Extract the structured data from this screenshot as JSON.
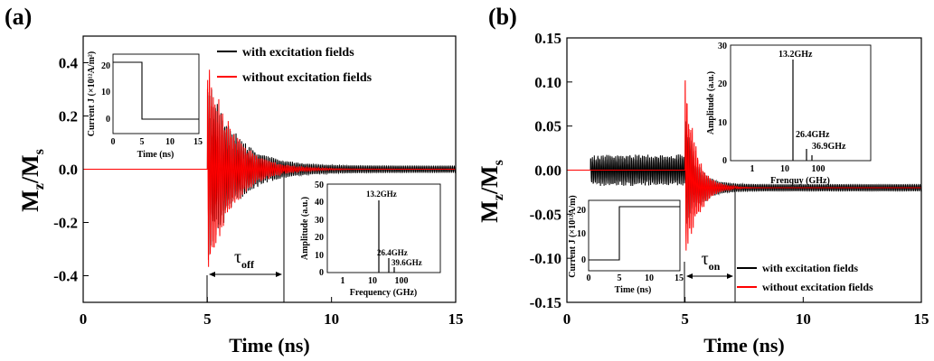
{
  "chart_data": [
    {
      "type": "line",
      "panel_label": "(a)",
      "xlabel": "Time (ns)",
      "ylabel": "M",
      "ylabel_sub": "z",
      "ylabel_tail": "/M",
      "ylabel_tail_sub": "s",
      "xlim": [
        0,
        15
      ],
      "ylim": [
        -0.5,
        0.5
      ],
      "xticks": [
        "0",
        "5",
        "10",
        "15"
      ],
      "yticks": [
        "0.4",
        "0.2",
        "0.0",
        "-0.2",
        "-0.4"
      ],
      "legend_position": "top-right",
      "series": [
        {
          "name": "with excitation fields",
          "color": "#000000",
          "onset": 5.0,
          "amplitude": 0.36,
          "decay_ns": 1.1,
          "baseline": 0.0
        },
        {
          "name": "without excitation fields",
          "color": "#ff0000",
          "onset": 5.0,
          "amplitude": 0.42,
          "decay_ns": 1.0,
          "baseline": 0.0
        }
      ],
      "annotation": {
        "symbol": "τ",
        "sub": "off",
        "x_start": 5.0,
        "x_end": 8.1
      },
      "insets": [
        {
          "type": "line",
          "xlabel": "Time (ns)",
          "ylabel": "Current J (×10¹²A/m²)",
          "xlim": [
            0,
            15
          ],
          "ylim": [
            -5,
            25
          ],
          "xticks": [
            "0",
            "5",
            "10",
            "15"
          ],
          "yticks": [
            "0",
            "10",
            "20"
          ],
          "x": [
            0,
            4.5,
            4.5,
            15
          ],
          "y": [
            22,
            22,
            0,
            0
          ]
        },
        {
          "type": "line",
          "xlabel": "Frequency (GHz)",
          "ylabel": "Amplitude (a.u.)",
          "xscale": "log",
          "xlim": [
            0.4,
            400
          ],
          "ylim": [
            0,
            50
          ],
          "xticks": [
            "1",
            "10",
            "100"
          ],
          "yticks": [
            "0",
            "10",
            "20",
            "30",
            "40",
            "50"
          ],
          "peaks": [
            {
              "x": 13.2,
              "y": 42,
              "label": "13.2GHz"
            },
            {
              "x": 26.4,
              "y": 8,
              "label": "26.4GHz"
            },
            {
              "x": 39.6,
              "y": 3,
              "label": "39.6GHz"
            }
          ]
        }
      ]
    },
    {
      "type": "line",
      "panel_label": "(b)",
      "xlabel": "Time (ns)",
      "ylabel": "M",
      "ylabel_sub": "z",
      "ylabel_tail": "/M",
      "ylabel_tail_sub": "s",
      "xlim": [
        0,
        15
      ],
      "ylim": [
        -0.15,
        0.15
      ],
      "xticks": [
        "0",
        "5",
        "10",
        "15"
      ],
      "yticks": [
        "0.15",
        "0.10",
        "0.05",
        "0.00",
        "-0.05",
        "-0.10",
        "-0.15"
      ],
      "legend_position": "bottom-right",
      "series": [
        {
          "name": "with excitation fields",
          "color": "#000000",
          "pre_start": 1.0,
          "pre_amplitude": 0.018,
          "onset": 5.0,
          "amplitude": 0.07,
          "decay_ns": 0.5,
          "baseline": -0.02
        },
        {
          "name": "without excitation fields",
          "color": "#ff0000",
          "onset": 5.0,
          "amplitude": 0.11,
          "decay_ns": 0.5,
          "baseline": -0.02
        }
      ],
      "annotation": {
        "symbol": "τ",
        "sub": "on",
        "x_start": 5.0,
        "x_end": 7.2
      },
      "insets": [
        {
          "type": "line",
          "xlabel": "Frenquy (GHz)",
          "ylabel": "Amplitude (a.u.)",
          "xscale": "log",
          "xlim": [
            0.4,
            400
          ],
          "ylim": [
            0,
            30
          ],
          "xticks": [
            "1",
            "10",
            "100"
          ],
          "yticks": [
            "0",
            "10",
            "20",
            "30"
          ],
          "peaks": [
            {
              "x": 13.2,
              "y": 26,
              "label": "13.2GHz"
            },
            {
              "x": 26.4,
              "y": 3,
              "label": "26.4GHz"
            },
            {
              "x": 36.9,
              "y": 1.5,
              "label": "36.9GHz"
            }
          ]
        },
        {
          "type": "line",
          "xlabel": "Time (ns)",
          "ylabel": "Current J (×10¹²A/m)",
          "xlim": [
            0,
            15
          ],
          "ylim": [
            -5,
            25
          ],
          "xticks": [
            "0",
            "5",
            "10",
            "15"
          ],
          "yticks": [
            "0",
            "10",
            "20"
          ],
          "x": [
            0,
            5,
            5,
            15
          ],
          "y": [
            0,
            0,
            22,
            22
          ]
        }
      ]
    }
  ]
}
